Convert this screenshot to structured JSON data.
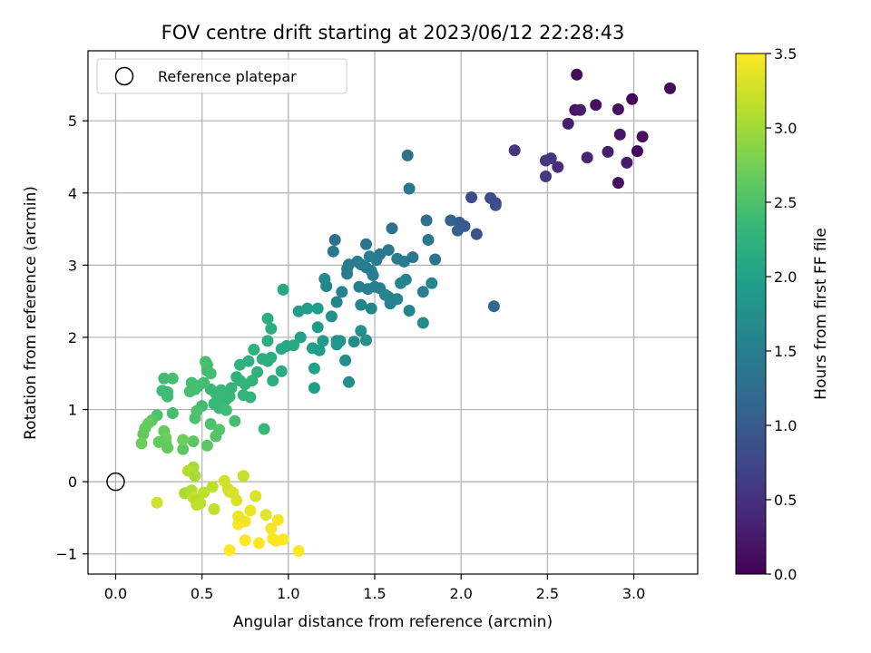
{
  "chart_data": {
    "type": "scatter",
    "title": "FOV centre drift starting at 2023/06/12 22:28:43",
    "xlabel": "Angular distance from reference (arcmin)",
    "ylabel": "Rotation from reference (arcmin)",
    "xlim": [
      -0.16,
      3.37
    ],
    "ylim": [
      -1.28,
      5.97
    ],
    "grid": true,
    "xticks": [
      0.0,
      0.5,
      1.0,
      1.5,
      2.0,
      2.5,
      3.0
    ],
    "xtick_labels": [
      "0.0",
      "0.5",
      "1.0",
      "1.5",
      "2.0",
      "2.5",
      "3.0"
    ],
    "yticks": [
      -1,
      0,
      1,
      2,
      3,
      4,
      5
    ],
    "ytick_labels": [
      "−1",
      "0",
      "1",
      "2",
      "3",
      "4",
      "5"
    ],
    "legend": {
      "position": "top-left",
      "entries": [
        "Reference platepar"
      ]
    },
    "reference_point": {
      "x": 0.0,
      "y": 0.0
    },
    "colorbar": {
      "label": "Hours from first FF file",
      "colormap": "viridis",
      "range": [
        0.0,
        3.5
      ],
      "ticks": [
        0.0,
        0.5,
        1.0,
        1.5,
        2.0,
        2.5,
        3.0,
        3.5
      ],
      "tick_labels": [
        "0.0",
        "0.5",
        "1.0",
        "1.5",
        "2.0",
        "2.5",
        "3.0",
        "3.5"
      ]
    },
    "point_columns": [
      "x",
      "y",
      "hours"
    ],
    "points": [
      [
        2.67,
        5.64,
        0.1
      ],
      [
        3.21,
        5.45,
        0.1
      ],
      [
        2.99,
        5.3,
        0.05
      ],
      [
        2.66,
        5.15,
        0.2
      ],
      [
        2.69,
        5.15,
        0.25
      ],
      [
        2.78,
        5.22,
        0.15
      ],
      [
        2.91,
        5.16,
        0.15
      ],
      [
        2.62,
        4.96,
        0.3
      ],
      [
        2.92,
        4.81,
        0.2
      ],
      [
        3.05,
        4.78,
        0.15
      ],
      [
        3.02,
        4.58,
        0.05
      ],
      [
        2.85,
        4.57,
        0.3
      ],
      [
        2.73,
        4.49,
        0.35
      ],
      [
        2.52,
        4.48,
        0.55
      ],
      [
        2.49,
        4.45,
        0.55
      ],
      [
        2.96,
        4.42,
        0.25
      ],
      [
        2.56,
        4.36,
        0.45
      ],
      [
        2.31,
        4.59,
        0.55
      ],
      [
        2.49,
        4.23,
        0.6
      ],
      [
        2.91,
        4.14,
        0.15
      ],
      [
        2.06,
        3.94,
        0.8
      ],
      [
        2.17,
        3.93,
        0.85
      ],
      [
        2.2,
        3.86,
        0.8
      ],
      [
        2.2,
        3.83,
        0.85
      ],
      [
        1.69,
        4.52,
        1.3
      ],
      [
        1.7,
        4.06,
        1.4
      ],
      [
        1.99,
        3.59,
        1.0
      ],
      [
        1.94,
        3.62,
        1.1
      ],
      [
        2.0,
        3.56,
        1.0
      ],
      [
        2.02,
        3.54,
        1.0
      ],
      [
        1.98,
        3.48,
        1.1
      ],
      [
        2.09,
        3.43,
        0.9
      ],
      [
        2.19,
        2.43,
        1.2
      ],
      [
        1.6,
        3.51,
        1.3
      ],
      [
        1.58,
        3.21,
        1.4
      ],
      [
        1.53,
        3.15,
        1.4
      ],
      [
        1.51,
        3.07,
        1.45
      ],
      [
        1.67,
        3.05,
        1.45
      ],
      [
        1.63,
        3.09,
        1.45
      ],
      [
        1.72,
        3.11,
        1.4
      ],
      [
        1.8,
        3.62,
        1.3
      ],
      [
        1.81,
        3.35,
        1.4
      ],
      [
        1.85,
        3.08,
        1.35
      ],
      [
        1.45,
        3.29,
        1.35
      ],
      [
        1.47,
        3.12,
        1.5
      ],
      [
        1.45,
        2.97,
        1.45
      ],
      [
        1.42,
        3.01,
        1.45
      ],
      [
        1.4,
        3.05,
        1.45
      ],
      [
        1.35,
        3.01,
        1.4
      ],
      [
        1.34,
        2.95,
        1.45
      ],
      [
        1.34,
        2.88,
        1.45
      ],
      [
        1.27,
        3.35,
        1.3
      ],
      [
        1.26,
        3.19,
        1.4
      ],
      [
        1.48,
        2.92,
        1.45
      ],
      [
        1.49,
        2.86,
        1.5
      ],
      [
        1.5,
        2.7,
        1.5
      ],
      [
        1.53,
        2.68,
        1.5
      ],
      [
        1.46,
        2.67,
        1.5
      ],
      [
        1.41,
        2.7,
        1.5
      ],
      [
        1.31,
        2.63,
        1.55
      ],
      [
        1.28,
        2.49,
        1.6
      ],
      [
        1.22,
        2.71,
        1.6
      ],
      [
        1.21,
        2.81,
        1.65
      ],
      [
        1.58,
        2.56,
        1.6
      ],
      [
        1.61,
        2.52,
        1.6
      ],
      [
        1.63,
        2.53,
        1.6
      ],
      [
        1.65,
        2.75,
        1.6
      ],
      [
        1.68,
        2.8,
        1.6
      ],
      [
        1.7,
        2.37,
        1.6
      ],
      [
        1.59,
        2.47,
        1.55
      ],
      [
        1.56,
        2.59,
        1.6
      ],
      [
        1.48,
        2.4,
        1.6
      ],
      [
        1.42,
        2.45,
        1.6
      ],
      [
        1.78,
        2.63,
        1.55
      ],
      [
        1.83,
        2.75,
        1.6
      ],
      [
        1.78,
        2.2,
        1.7
      ],
      [
        1.42,
        2.09,
        1.75
      ],
      [
        1.45,
        1.96,
        1.75
      ],
      [
        1.38,
        1.94,
        1.7
      ],
      [
        1.33,
        1.68,
        1.7
      ],
      [
        1.35,
        1.38,
        1.75
      ],
      [
        1.25,
        2.29,
        1.75
      ],
      [
        1.28,
        1.95,
        1.8
      ],
      [
        1.3,
        1.95,
        1.8
      ],
      [
        1.28,
        1.9,
        1.85
      ],
      [
        1.2,
        1.95,
        1.9
      ],
      [
        1.17,
        2.14,
        1.9
      ],
      [
        1.17,
        2.4,
        1.95
      ],
      [
        1.18,
        1.82,
        1.95
      ],
      [
        1.14,
        1.85,
        1.95
      ],
      [
        1.15,
        1.57,
        2.0
      ],
      [
        1.15,
        1.3,
        1.95
      ],
      [
        1.11,
        2.4,
        1.95
      ],
      [
        1.06,
        2.36,
        1.95
      ],
      [
        1.07,
        2.0,
        2.0
      ],
      [
        1.03,
        1.89,
        2.1
      ],
      [
        0.99,
        1.88,
        2.1
      ],
      [
        0.97,
        2.66,
        2.1
      ],
      [
        0.96,
        1.84,
        2.1
      ],
      [
        0.9,
        2.12,
        2.2
      ],
      [
        0.88,
        2.26,
        2.2
      ],
      [
        0.88,
        1.95,
        2.2
      ],
      [
        0.9,
        1.72,
        2.2
      ],
      [
        0.88,
        1.67,
        2.2
      ],
      [
        0.85,
        1.7,
        2.2
      ],
      [
        0.8,
        1.83,
        2.25
      ],
      [
        0.77,
        1.67,
        2.25
      ],
      [
        0.72,
        1.62,
        2.25
      ],
      [
        0.7,
        1.45,
        2.25
      ],
      [
        0.72,
        1.4,
        2.25
      ],
      [
        0.75,
        1.35,
        2.3
      ],
      [
        0.74,
        1.2,
        2.3
      ],
      [
        0.67,
        1.3,
        2.3
      ],
      [
        0.66,
        1.18,
        2.35
      ],
      [
        0.64,
        1.14,
        2.35
      ],
      [
        0.62,
        1.1,
        2.35
      ],
      [
        0.6,
        1.02,
        2.35
      ],
      [
        0.57,
        1.08,
        2.35
      ],
      [
        0.58,
        1.22,
        2.35
      ],
      [
        0.55,
        1.28,
        2.35
      ],
      [
        0.53,
        1.62,
        2.4
      ],
      [
        0.53,
        1.54,
        2.4
      ],
      [
        0.55,
        1.5,
        2.45
      ],
      [
        0.51,
        1.37,
        2.45
      ],
      [
        0.48,
        1.33,
        2.45
      ],
      [
        0.46,
        1.28,
        2.45
      ],
      [
        0.44,
        1.37,
        2.45
      ],
      [
        0.43,
        1.25,
        2.45
      ],
      [
        0.5,
        1.05,
        2.4
      ],
      [
        0.47,
        0.98,
        2.5
      ],
      [
        0.46,
        0.88,
        2.5
      ],
      [
        0.55,
        0.8,
        2.5
      ],
      [
        0.6,
        0.72,
        2.55
      ],
      [
        0.58,
        0.63,
        2.55
      ],
      [
        0.53,
        0.5,
        2.6
      ],
      [
        0.45,
        0.56,
        2.6
      ],
      [
        0.39,
        0.45,
        2.6
      ],
      [
        0.33,
        0.95,
        2.45
      ],
      [
        0.3,
        1.24,
        2.4
      ],
      [
        0.27,
        1.26,
        2.4
      ],
      [
        0.3,
        1.18,
        2.4
      ],
      [
        0.28,
        1.43,
        2.4
      ],
      [
        0.33,
        1.43,
        2.45
      ],
      [
        0.24,
        0.92,
        2.5
      ],
      [
        0.21,
        0.85,
        2.6
      ],
      [
        0.17,
        0.74,
        2.65
      ],
      [
        0.19,
        0.81,
        2.65
      ],
      [
        0.16,
        0.66,
        2.65
      ],
      [
        0.15,
        0.53,
        2.7
      ],
      [
        0.28,
        0.7,
        2.65
      ],
      [
        0.29,
        0.61,
        2.7
      ],
      [
        0.29,
        0.55,
        2.7
      ],
      [
        0.3,
        0.47,
        2.65
      ],
      [
        0.25,
        0.55,
        2.65
      ],
      [
        0.39,
        0.58,
        2.7
      ],
      [
        0.45,
        0.2,
        3.05
      ],
      [
        0.42,
        0.15,
        3.1
      ],
      [
        0.46,
        0.08,
        3.05
      ],
      [
        0.4,
        -0.16,
        3.05
      ],
      [
        0.44,
        -0.12,
        3.1
      ],
      [
        0.45,
        -0.22,
        3.2
      ],
      [
        0.47,
        -0.26,
        3.1
      ],
      [
        0.47,
        -0.32,
        3.15
      ],
      [
        0.49,
        -0.3,
        3.15
      ],
      [
        0.51,
        -0.15,
        3.15
      ],
      [
        0.56,
        -0.07,
        3.15
      ],
      [
        0.57,
        -0.38,
        3.2
      ],
      [
        0.63,
        0.01,
        3.25
      ],
      [
        0.65,
        -0.1,
        3.25
      ],
      [
        0.66,
        -0.14,
        3.25
      ],
      [
        0.68,
        -0.15,
        3.3
      ],
      [
        0.7,
        -0.26,
        3.3
      ],
      [
        0.74,
        0.08,
        3.2
      ],
      [
        0.72,
        -0.56,
        3.5
      ],
      [
        0.71,
        -0.59,
        3.5
      ],
      [
        0.75,
        -0.55,
        3.45
      ],
      [
        0.78,
        -0.4,
        3.4
      ],
      [
        0.81,
        -0.2,
        3.3
      ],
      [
        0.71,
        -0.48,
        3.4
      ],
      [
        0.87,
        -0.46,
        3.35
      ],
      [
        0.9,
        -0.65,
        3.45
      ],
      [
        0.91,
        -0.79,
        3.5
      ],
      [
        0.94,
        -0.53,
        3.45
      ],
      [
        0.93,
        -0.82,
        3.5
      ],
      [
        0.97,
        -0.8,
        3.5
      ],
      [
        1.06,
        -0.96,
        3.5
      ],
      [
        0.66,
        -0.95,
        3.5
      ],
      [
        0.75,
        -0.81,
        3.5
      ],
      [
        0.83,
        -0.85,
        3.5
      ],
      [
        0.24,
        -0.29,
        3.25
      ],
      [
        0.52,
        1.66,
        2.45
      ],
      [
        0.96,
        1.53,
        2.15
      ],
      [
        0.91,
        1.4,
        2.2
      ],
      [
        0.82,
        1.52,
        2.25
      ],
      [
        0.79,
        1.4,
        2.3
      ],
      [
        0.78,
        1.17,
        2.3
      ],
      [
        0.86,
        0.73,
        2.35
      ],
      [
        0.69,
        0.84,
        2.45
      ],
      [
        0.64,
        0.99,
        2.4
      ],
      [
        0.61,
        1.27,
        2.35
      ]
    ]
  }
}
